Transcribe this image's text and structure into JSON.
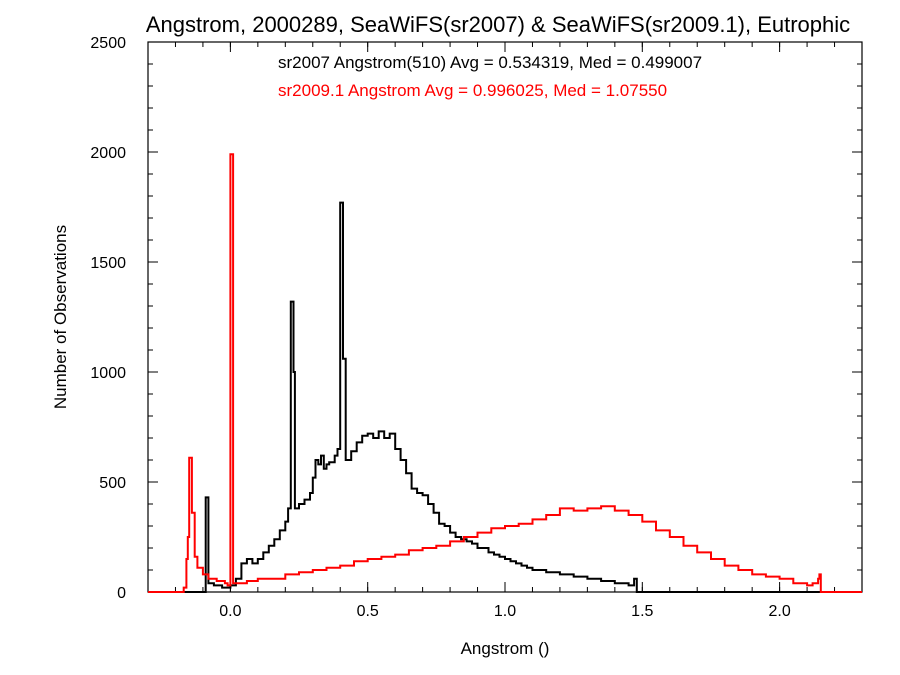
{
  "chart_data": {
    "type": "histogram-step",
    "title": "Angstrom, 2000289, SeaWiFS(sr2007) & SeaWiFS(sr2009.1), Eutrophic",
    "xlabel": "Angstrom ()",
    "ylabel": "Number of Observations",
    "xlim": [
      -0.3,
      2.3
    ],
    "ylim": [
      0,
      2500
    ],
    "xticks": [
      0.0,
      0.5,
      1.0,
      1.5,
      2.0
    ],
    "xtick_labels": [
      "0.0",
      "0.5",
      "1.0",
      "1.5",
      "2.0"
    ],
    "yticks": [
      0,
      500,
      1000,
      1500,
      2000,
      2500
    ],
    "ytick_labels": [
      "0",
      "500",
      "1000",
      "1500",
      "2000",
      "2500"
    ],
    "annotations": [
      {
        "text": "sr2007 Angstrom(510) Avg = 0.534319, Med = 0.499007",
        "color": "#000000"
      },
      {
        "text": "sr2009.1 Angstrom Avg = 0.996025, Med = 1.07550",
        "color": "#ff0000"
      }
    ],
    "series": [
      {
        "color": "#000000",
        "points": [
          [
            -0.3,
            0
          ],
          [
            -0.09,
            0
          ],
          [
            -0.09,
            430
          ],
          [
            -0.08,
            40
          ],
          [
            -0.06,
            30
          ],
          [
            -0.03,
            20
          ],
          [
            0.0,
            30
          ],
          [
            0.02,
            60
          ],
          [
            0.04,
            130
          ],
          [
            0.06,
            150
          ],
          [
            0.08,
            130
          ],
          [
            0.1,
            150
          ],
          [
            0.12,
            180
          ],
          [
            0.14,
            210
          ],
          [
            0.16,
            240
          ],
          [
            0.18,
            280
          ],
          [
            0.2,
            320
          ],
          [
            0.21,
            380
          ],
          [
            0.22,
            1320
          ],
          [
            0.23,
            1000
          ],
          [
            0.235,
            380
          ],
          [
            0.25,
            400
          ],
          [
            0.27,
            420
          ],
          [
            0.29,
            450
          ],
          [
            0.3,
            520
          ],
          [
            0.31,
            600
          ],
          [
            0.32,
            580
          ],
          [
            0.33,
            620
          ],
          [
            0.34,
            560
          ],
          [
            0.35,
            580
          ],
          [
            0.36,
            590
          ],
          [
            0.38,
            620
          ],
          [
            0.39,
            650
          ],
          [
            0.4,
            1770
          ],
          [
            0.41,
            1060
          ],
          [
            0.42,
            600
          ],
          [
            0.44,
            640
          ],
          [
            0.46,
            680
          ],
          [
            0.48,
            710
          ],
          [
            0.5,
            720
          ],
          [
            0.52,
            700
          ],
          [
            0.54,
            730
          ],
          [
            0.56,
            700
          ],
          [
            0.58,
            720
          ],
          [
            0.6,
            650
          ],
          [
            0.62,
            600
          ],
          [
            0.64,
            540
          ],
          [
            0.66,
            470
          ],
          [
            0.68,
            450
          ],
          [
            0.7,
            440
          ],
          [
            0.72,
            400
          ],
          [
            0.74,
            360
          ],
          [
            0.76,
            310
          ],
          [
            0.78,
            300
          ],
          [
            0.8,
            270
          ],
          [
            0.82,
            250
          ],
          [
            0.84,
            240
          ],
          [
            0.86,
            230
          ],
          [
            0.88,
            220
          ],
          [
            0.9,
            200
          ],
          [
            0.92,
            200
          ],
          [
            0.94,
            180
          ],
          [
            0.96,
            170
          ],
          [
            0.98,
            160
          ],
          [
            1.0,
            150
          ],
          [
            1.02,
            140
          ],
          [
            1.04,
            130
          ],
          [
            1.06,
            120
          ],
          [
            1.08,
            110
          ],
          [
            1.1,
            100
          ],
          [
            1.15,
            90
          ],
          [
            1.2,
            80
          ],
          [
            1.25,
            70
          ],
          [
            1.3,
            60
          ],
          [
            1.35,
            50
          ],
          [
            1.4,
            40
          ],
          [
            1.45,
            30
          ],
          [
            1.47,
            30
          ],
          [
            1.47,
            60
          ],
          [
            1.48,
            0
          ],
          [
            2.3,
            0
          ]
        ]
      },
      {
        "color": "#ff0000",
        "points": [
          [
            -0.3,
            0
          ],
          [
            -0.17,
            0
          ],
          [
            -0.17,
            20
          ],
          [
            -0.16,
            150
          ],
          [
            -0.155,
            250
          ],
          [
            -0.15,
            610
          ],
          [
            -0.14,
            360
          ],
          [
            -0.13,
            160
          ],
          [
            -0.12,
            110
          ],
          [
            -0.1,
            80
          ],
          [
            -0.08,
            60
          ],
          [
            -0.05,
            50
          ],
          [
            -0.02,
            40
          ],
          [
            -0.01,
            30
          ],
          [
            0.0,
            1990
          ],
          [
            0.01,
            40
          ],
          [
            0.03,
            40
          ],
          [
            0.06,
            50
          ],
          [
            0.1,
            60
          ],
          [
            0.15,
            60
          ],
          [
            0.2,
            80
          ],
          [
            0.25,
            90
          ],
          [
            0.3,
            100
          ],
          [
            0.35,
            110
          ],
          [
            0.4,
            120
          ],
          [
            0.45,
            140
          ],
          [
            0.5,
            150
          ],
          [
            0.55,
            160
          ],
          [
            0.6,
            170
          ],
          [
            0.65,
            190
          ],
          [
            0.7,
            200
          ],
          [
            0.75,
            210
          ],
          [
            0.8,
            230
          ],
          [
            0.85,
            250
          ],
          [
            0.9,
            270
          ],
          [
            0.95,
            290
          ],
          [
            1.0,
            300
          ],
          [
            1.05,
            310
          ],
          [
            1.1,
            330
          ],
          [
            1.15,
            350
          ],
          [
            1.2,
            380
          ],
          [
            1.25,
            370
          ],
          [
            1.3,
            380
          ],
          [
            1.35,
            390
          ],
          [
            1.4,
            370
          ],
          [
            1.45,
            350
          ],
          [
            1.5,
            320
          ],
          [
            1.55,
            280
          ],
          [
            1.6,
            250
          ],
          [
            1.65,
            210
          ],
          [
            1.7,
            180
          ],
          [
            1.75,
            150
          ],
          [
            1.8,
            120
          ],
          [
            1.85,
            100
          ],
          [
            1.9,
            80
          ],
          [
            1.95,
            70
          ],
          [
            2.0,
            60
          ],
          [
            2.05,
            40
          ],
          [
            2.1,
            30
          ],
          [
            2.12,
            40
          ],
          [
            2.14,
            60
          ],
          [
            2.145,
            80
          ],
          [
            2.15,
            0
          ],
          [
            2.3,
            0
          ]
        ]
      }
    ]
  }
}
